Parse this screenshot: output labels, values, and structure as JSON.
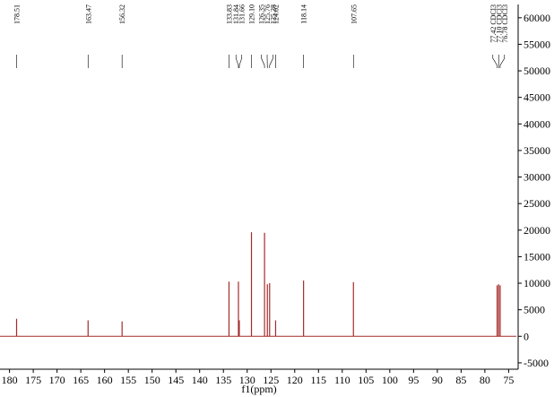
{
  "chart_data": {
    "type": "nmr",
    "x_label": "f1(ppm)",
    "color": "#a52a2a",
    "x": [
      178.51,
      163.47,
      156.32,
      133.83,
      131.84,
      131.66,
      129.1,
      126.35,
      125.76,
      125.28,
      124.02,
      118.14,
      107.65,
      77.42,
      77.1,
      76.78
    ],
    "values": [
      3300,
      3000,
      2800,
      10300,
      10300,
      3000,
      19600,
      19500,
      9800,
      10000,
      3000,
      10500,
      10200,
      9600,
      9800,
      9600
    ],
    "value_labels": [
      "178.51",
      "163.47",
      "156.32",
      "133.83",
      "131.84",
      "131.66",
      "129.10",
      "126.35",
      "125.76",
      "125.28",
      "124.02",
      "118.14",
      "107.65",
      "77.42 CDCl3",
      "77.10 CDCl3",
      "76.78 CDCl3"
    ],
    "xlim": [
      182,
      73
    ],
    "ylim": [
      -6200,
      62500
    ],
    "xticks": [
      180,
      175,
      170,
      165,
      160,
      155,
      150,
      145,
      140,
      135,
      130,
      125,
      120,
      115,
      110,
      105,
      100,
      95,
      90,
      85,
      80,
      75
    ],
    "yticks": [
      -5000,
      0,
      5000,
      10000,
      15000,
      20000,
      25000,
      30000,
      35000,
      40000,
      45000,
      50000,
      55000,
      60000
    ]
  }
}
